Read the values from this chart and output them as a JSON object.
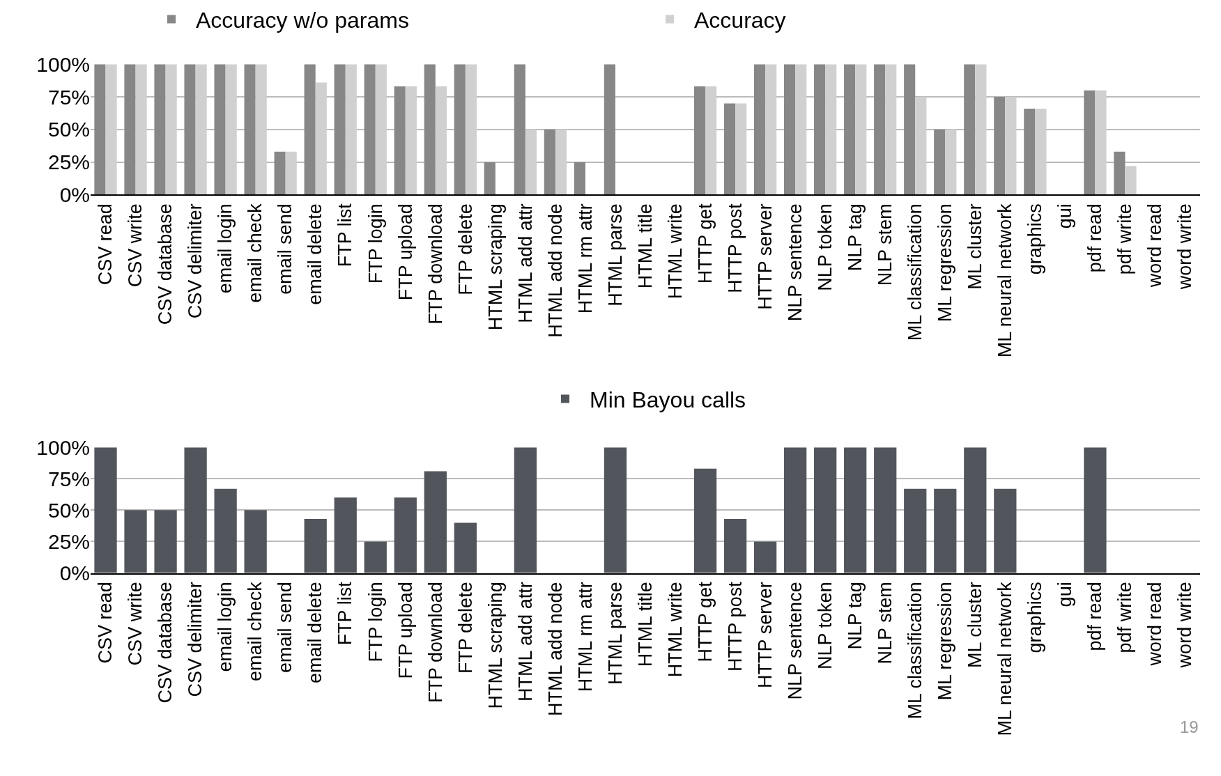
{
  "chart_data": [
    {
      "type": "bar",
      "categories": [
        "CSV read",
        "CSV write",
        "CSV database",
        "CSV delimiter",
        "email login",
        "email check",
        "email send",
        "email delete",
        "FTP list",
        "FTP login",
        "FTP upload",
        "FTP download",
        "FTP delete",
        "HTML scraping",
        "HTML add attr",
        "HTML add node",
        "HTML rm attr",
        "HTML parse",
        "HTML title",
        "HTML write",
        "HTTP get",
        "HTTP post",
        "HTTP server",
        "NLP sentence",
        "NLP token",
        "NLP tag",
        "NLP stem",
        "ML classification",
        "ML regression",
        "ML cluster",
        "ML neural network",
        "graphics",
        "gui",
        "pdf read",
        "pdf write",
        "word read",
        "word write"
      ],
      "series": [
        {
          "name": "Accuracy w/o params",
          "color": "#878787",
          "values": [
            100,
            100,
            100,
            100,
            100,
            100,
            33,
            100,
            100,
            100,
            83,
            100,
            100,
            25,
            100,
            50,
            25,
            100,
            0,
            0,
            83,
            70,
            100,
            100,
            100,
            100,
            100,
            100,
            50,
            100,
            75,
            66,
            0,
            80,
            33,
            0,
            0
          ]
        },
        {
          "name": "Accuracy",
          "color": "#d0d0d0",
          "values": [
            100,
            100,
            100,
            100,
            100,
            100,
            33,
            86,
            100,
            100,
            83,
            83,
            100,
            0,
            50,
            50,
            0,
            0,
            0,
            0,
            83,
            70,
            100,
            100,
            100,
            100,
            100,
            75,
            50,
            100,
            75,
            66,
            0,
            80,
            22,
            0,
            0
          ]
        }
      ],
      "ylim": [
        0,
        100
      ],
      "yticks": [
        {
          "value": 0,
          "label": "0%"
        },
        {
          "value": 25,
          "label": "25%"
        },
        {
          "value": 50,
          "label": "50%"
        },
        {
          "value": 75,
          "label": "75%"
        },
        {
          "value": 100,
          "label": "100%"
        }
      ],
      "grid": "y",
      "legend": "top"
    },
    {
      "type": "bar",
      "categories": [
        "CSV read",
        "CSV write",
        "CSV database",
        "CSV delimiter",
        "email login",
        "email check",
        "email send",
        "email delete",
        "FTP list",
        "FTP login",
        "FTP upload",
        "FTP download",
        "FTP delete",
        "HTML scraping",
        "HTML add attr",
        "HTML add node",
        "HTML rm attr",
        "HTML parse",
        "HTML title",
        "HTML write",
        "HTTP get",
        "HTTP post",
        "HTTP server",
        "NLP sentence",
        "NLP token",
        "NLP tag",
        "NLP stem",
        "ML classification",
        "ML regression",
        "ML cluster",
        "ML neural network",
        "graphics",
        "gui",
        "pdf read",
        "pdf write",
        "word read",
        "word write"
      ],
      "series": [
        {
          "name": "Min Bayou calls",
          "color": "#52565c",
          "values": [
            100,
            50,
            50,
            100,
            67,
            50,
            0,
            43,
            60,
            25,
            60,
            81,
            40,
            0,
            100,
            0,
            0,
            100,
            0,
            0,
            83,
            43,
            25,
            100,
            100,
            100,
            100,
            67,
            67,
            100,
            67,
            0,
            0,
            100,
            0,
            0,
            0
          ]
        }
      ],
      "ylim": [
        0,
        100
      ],
      "yticks": [
        {
          "value": 0,
          "label": "0%"
        },
        {
          "value": 25,
          "label": "25%"
        },
        {
          "value": 50,
          "label": "50%"
        },
        {
          "value": 75,
          "label": "75%"
        },
        {
          "value": 100,
          "label": "100%"
        }
      ],
      "grid": "y",
      "legend": "top",
      "annotations": [
        "19"
      ]
    }
  ]
}
